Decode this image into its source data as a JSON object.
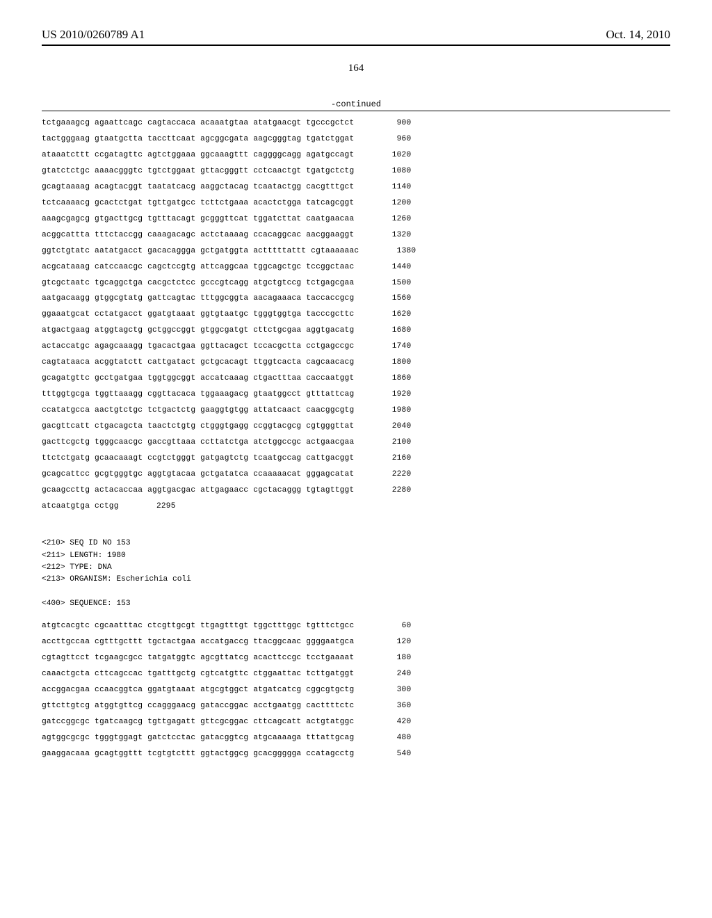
{
  "header": {
    "pub_number": "US 2010/0260789 A1",
    "pub_date": "Oct. 14, 2010"
  },
  "page_number": "164",
  "continued_label": "-continued",
  "sequence_top": {
    "lines": [
      {
        "groups": [
          "tctgaaagcg",
          "agaattcagc",
          "cagtaccaca",
          "acaaatgtaa",
          "atatgaacgt",
          "tgcccgctct"
        ],
        "num": "900"
      },
      {
        "groups": [
          "tactgggaag",
          "gtaatgctta",
          "taccttcaat",
          "agcggcgata",
          "aagcgggtag",
          "tgatctggat"
        ],
        "num": "960"
      },
      {
        "groups": [
          "ataaatcttt",
          "ccgatagttc",
          "agtctggaaa",
          "ggcaaagttt",
          "caggggcagg",
          "agatgccagt"
        ],
        "num": "1020"
      },
      {
        "groups": [
          "gtatctctgc",
          "aaaacgggtc",
          "tgtctggaat",
          "gttacgggtt",
          "cctcaactgt",
          "tgatgctctg"
        ],
        "num": "1080"
      },
      {
        "groups": [
          "gcagtaaaag",
          "acagtacggt",
          "taatatcacg",
          "aaggctacag",
          "tcaatactgg",
          "cacgtttgct"
        ],
        "num": "1140"
      },
      {
        "groups": [
          "tctcaaaacg",
          "gcactctgat",
          "tgttgatgcc",
          "tcttctgaaa",
          "acactctgga",
          "tatcagcggt"
        ],
        "num": "1200"
      },
      {
        "groups": [
          "aaagcgagcg",
          "gtgacttgcg",
          "tgtttacagt",
          "gcgggttcat",
          "tggatcttat",
          "caatgaacaa"
        ],
        "num": "1260"
      },
      {
        "groups": [
          "acggcattta",
          "tttctaccgg",
          "caaagacagc",
          "actctaaaag",
          "ccacaggcac",
          "aacggaaggt"
        ],
        "num": "1320"
      },
      {
        "groups": [
          "ggtctgtatc",
          "aatatgacct",
          "gacacaggga",
          "gctgatggta",
          "actttttattt",
          "cgtaaaaaac"
        ],
        "num": "1380"
      },
      {
        "groups": [
          "acgcataaag",
          "catccaacgc",
          "cagctccgtg",
          "attcaggcaa",
          "tggcagctgc",
          "tccggctaac"
        ],
        "num": "1440"
      },
      {
        "groups": [
          "gtcgctaatc",
          "tgcaggctga",
          "cacgctctcc",
          "gcccgtcagg",
          "atgctgtccg",
          "tctgagcgaa"
        ],
        "num": "1500"
      },
      {
        "groups": [
          "aatgacaagg",
          "gtggcgtatg",
          "gattcagtac",
          "tttggcggta",
          "aacagaaaca",
          "taccaccgcg"
        ],
        "num": "1560"
      },
      {
        "groups": [
          "ggaaatgcat",
          "cctatgacct",
          "ggatgtaaat",
          "ggtgtaatgc",
          "tgggtggtga",
          "tacccgcttc"
        ],
        "num": "1620"
      },
      {
        "groups": [
          "atgactgaag",
          "atggtagctg",
          "gctggccggt",
          "gtggcgatgt",
          "cttctgcgaa",
          "aggtgacatg"
        ],
        "num": "1680"
      },
      {
        "groups": [
          "actaccatgc",
          "agagcaaagg",
          "tgacactgaa",
          "ggttacagct",
          "tccacgctta",
          "cctgagccgc"
        ],
        "num": "1740"
      },
      {
        "groups": [
          "cagtataaca",
          "acggtatctt",
          "cattgatact",
          "gctgcacagt",
          "ttggtcacta",
          "cagcaacacg"
        ],
        "num": "1800"
      },
      {
        "groups": [
          "gcagatgttc",
          "gcctgatgaa",
          "tggtggcggt",
          "accatcaaag",
          "ctgactttaa",
          "caccaatggt"
        ],
        "num": "1860"
      },
      {
        "groups": [
          "tttggtgcga",
          "tggttaaagg",
          "cggttacaca",
          "tggaaagacg",
          "gtaatggcct",
          "gtttattcag"
        ],
        "num": "1920"
      },
      {
        "groups": [
          "ccatatgcca",
          "aactgtctgc",
          "tctgactctg",
          "gaaggtgtgg",
          "attatcaact",
          "caacggcgtg"
        ],
        "num": "1980"
      },
      {
        "groups": [
          "gacgttcatt",
          "ctgacagcta",
          "taactctgtg",
          "ctgggtgagg",
          "ccggtacgcg",
          "cgtgggttat"
        ],
        "num": "2040"
      },
      {
        "groups": [
          "gacttcgctg",
          "tgggcaacgc",
          "gaccgttaaa",
          "ccttatctga",
          "atctggccgc",
          "actgaacgaa"
        ],
        "num": "2100"
      },
      {
        "groups": [
          "ttctctgatg",
          "gcaacaaagt",
          "ccgtctgggt",
          "gatgagtctg",
          "tcaatgccag",
          "cattgacggt"
        ],
        "num": "2160"
      },
      {
        "groups": [
          "gcagcattcc",
          "gcgtgggtgc",
          "aggtgtacaa",
          "gctgatatca",
          "ccaaaaacat",
          "gggagcatat"
        ],
        "num": "2220"
      },
      {
        "groups": [
          "gcaagccttg",
          "actacaccaa",
          "aggtgacgac",
          "attgagaacc",
          "cgctacaggg",
          "tgtagttggt"
        ],
        "num": "2280"
      },
      {
        "groups": [
          "atcaatgtga",
          "cctgg",
          "",
          "",
          "",
          ""
        ],
        "num": "2295"
      }
    ]
  },
  "meta": {
    "seq_id": "<210> SEQ ID NO 153",
    "length": "<211> LENGTH: 1980",
    "type": "<212> TYPE: DNA",
    "organism": "<213> ORGANISM: Escherichia coli",
    "sequence_label": "<400> SEQUENCE: 153"
  },
  "sequence_bottom": {
    "lines": [
      {
        "groups": [
          "atgtcacgtc",
          "cgcaatttac",
          "ctcgttgcgt",
          "ttgagtttgt",
          "tggctttggc",
          "tgtttctgcc"
        ],
        "num": "60"
      },
      {
        "groups": [
          "accttgccaa",
          "cgtttgcttt",
          "tgctactgaa",
          "accatgaccg",
          "ttacggcaac",
          "ggggaatgca"
        ],
        "num": "120"
      },
      {
        "groups": [
          "cgtagttcct",
          "tcgaagcgcc",
          "tatgatggtc",
          "agcgttatcg",
          "acacttccgc",
          "tcctgaaaat"
        ],
        "num": "180"
      },
      {
        "groups": [
          "caaactgcta",
          "cttcagccac",
          "tgatttgctg",
          "cgtcatgttc",
          "ctggaattac",
          "tcttgatggt"
        ],
        "num": "240"
      },
      {
        "groups": [
          "accggacgaa",
          "ccaacggtca",
          "ggatgtaaat",
          "atgcgtggct",
          "atgatcatcg",
          "cggcgtgctg"
        ],
        "num": "300"
      },
      {
        "groups": [
          "gttcttgtcg",
          "atggtgttcg",
          "ccagggaacg",
          "gataccggac",
          "acctgaatgg",
          "cacttttctc"
        ],
        "num": "360"
      },
      {
        "groups": [
          "gatccggcgc",
          "tgatcaagcg",
          "tgttgagatt",
          "gttcgcggac",
          "cttcagcatt",
          "actgtatggc"
        ],
        "num": "420"
      },
      {
        "groups": [
          "agtggcgcgc",
          "tgggtggagt",
          "gatctcctac",
          "gatacggtcg",
          "atgcaaaaga",
          "tttattgcag"
        ],
        "num": "480"
      },
      {
        "groups": [
          "gaaggacaaa",
          "gcagtggttt",
          "tcgtgtcttt",
          "ggtactggcg",
          "gcacggggga",
          "ccatagcctg"
        ],
        "num": "540"
      }
    ]
  },
  "style": {
    "font_mono": "Courier New",
    "font_serif": "Times New Roman",
    "text_color": "#000000",
    "background": "#ffffff"
  }
}
